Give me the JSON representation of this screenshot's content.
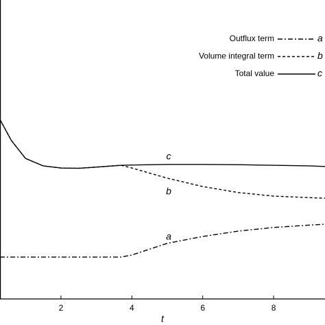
{
  "chart_data": {
    "type": "line",
    "x": [
      0.28,
      0.6,
      1,
      1.5,
      2,
      2.5,
      3,
      3.7,
      4,
      5,
      6,
      7,
      8,
      9,
      9.45
    ],
    "series": [
      {
        "name": "Outflux term",
        "label": "a",
        "color": "#000000",
        "dash": "7,3,2,3",
        "values": [
          0.14,
          0.14,
          0.14,
          0.14,
          0.14,
          0.14,
          0.14,
          0.14,
          0.147,
          0.186,
          0.209,
          0.227,
          0.239,
          0.247,
          0.25
        ]
      },
      {
        "name": "Volume integral term",
        "label": "b",
        "color": "#000000",
        "dash": "4,3",
        "values": [
          0.6,
          0.53,
          0.47,
          0.445,
          0.438,
          0.437,
          0.441,
          0.447,
          0.438,
          0.404,
          0.376,
          0.356,
          0.344,
          0.339,
          0.337
        ]
      },
      {
        "name": "Total value",
        "label": "c",
        "color": "#000000",
        "dash": "none",
        "values": [
          0.6,
          0.53,
          0.47,
          0.445,
          0.438,
          0.437,
          0.441,
          0.447,
          0.448,
          0.45,
          0.45,
          0.449,
          0.447,
          0.445,
          0.443
        ]
      }
    ],
    "xlabel": "t",
    "xlim": [
      0.28,
      9.45
    ],
    "xticks": [
      2,
      4,
      6,
      8
    ],
    "ylim": [
      0,
      1
    ]
  }
}
